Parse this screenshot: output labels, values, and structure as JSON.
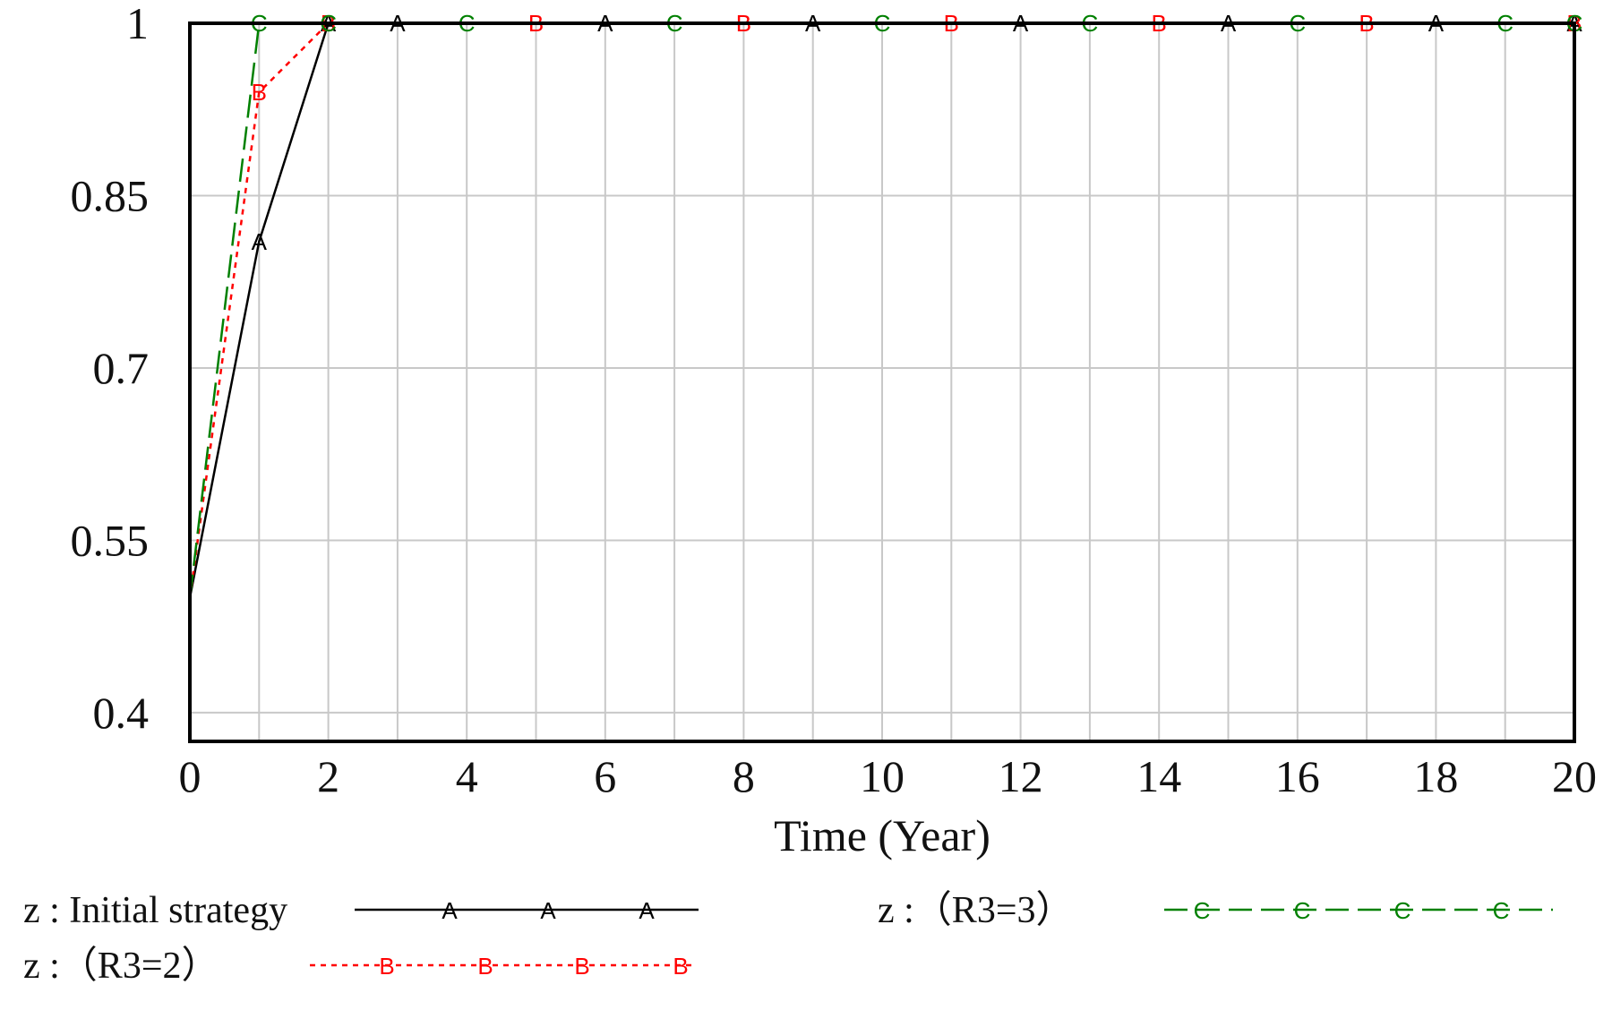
{
  "chart_data": {
    "type": "line",
    "title": "",
    "xlabel": "Time (Year)",
    "ylabel": "",
    "xlim": [
      0,
      20
    ],
    "ylim": [
      0.375,
      1.0
    ],
    "x_ticks": [
      0,
      2,
      4,
      6,
      8,
      10,
      12,
      14,
      16,
      18,
      20
    ],
    "x_tick_labels": [
      "0",
      "2",
      "4",
      "6",
      "8",
      "10",
      "12",
      "14",
      "16",
      "18",
      "20"
    ],
    "y_ticks": [
      0.4,
      0.55,
      0.7,
      0.85,
      1.0
    ],
    "y_tick_labels": [
      "0.4",
      "0.55",
      "0.7",
      "0.85",
      "1"
    ],
    "grid": true,
    "legend_position": "bottom",
    "x": [
      0,
      1,
      2,
      3,
      4,
      5,
      6,
      7,
      8,
      9,
      10,
      11,
      12,
      13,
      14,
      15,
      16,
      17,
      18,
      19,
      20
    ],
    "series": [
      {
        "name": "z : Initial strategy",
        "marker": "A",
        "color": "#000000",
        "dash": "solid",
        "values": [
          0.5,
          0.81,
          1,
          1,
          1,
          1,
          1,
          1,
          1,
          1,
          1,
          1,
          1,
          1,
          1,
          1,
          1,
          1,
          1,
          1,
          1
        ]
      },
      {
        "name": "z :（R3=2）",
        "marker": "B",
        "color": "#ff0000",
        "dash": "dotted",
        "values": [
          0.5,
          0.94,
          1,
          1,
          1,
          1,
          1,
          1,
          1,
          1,
          1,
          1,
          1,
          1,
          1,
          1,
          1,
          1,
          1,
          1,
          1
        ]
      },
      {
        "name": "z :（R3=3）",
        "marker": "C",
        "color": "#008000",
        "dash": "dashed",
        "values": [
          0.5,
          1,
          1,
          1,
          1,
          1,
          1,
          1,
          1,
          1,
          1,
          1,
          1,
          1,
          1,
          1,
          1,
          1,
          1,
          1,
          1
        ]
      }
    ]
  }
}
